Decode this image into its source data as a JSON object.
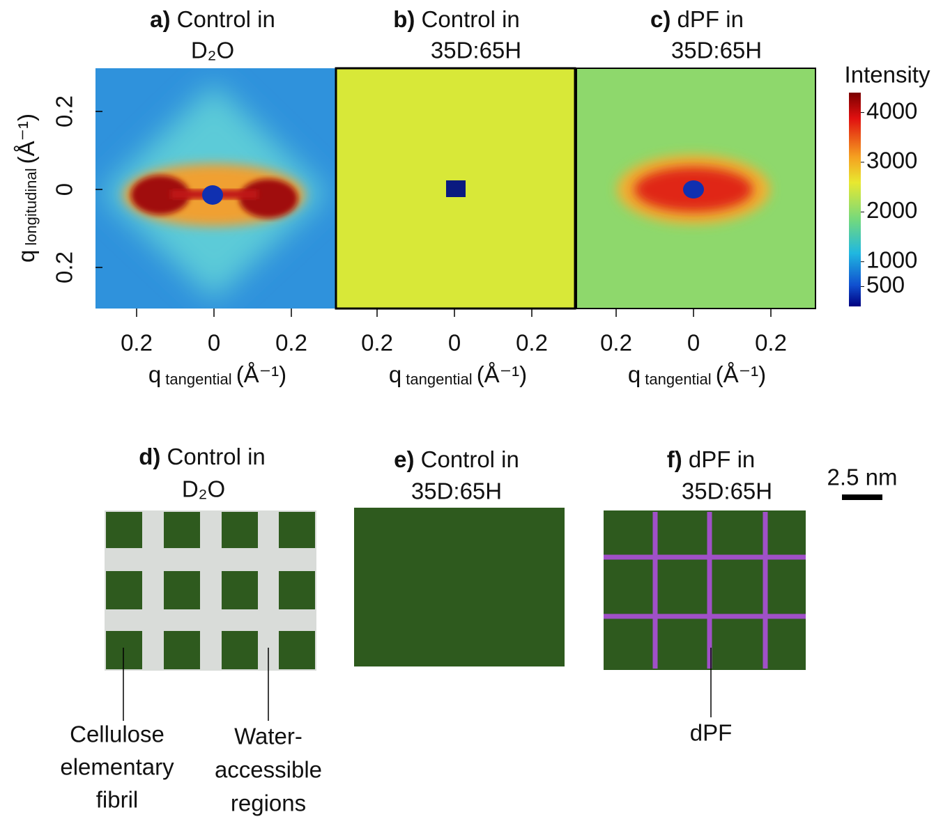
{
  "panels": [
    {
      "label": "a)",
      "title": [
        "Control in",
        "D₂O"
      ]
    },
    {
      "label": "b)",
      "title": [
        "Control in",
        "35D:65H"
      ]
    },
    {
      "label": "c)",
      "title": [
        "dPF in",
        "35D:65H"
      ]
    },
    {
      "label": "d)",
      "title": [
        "Control in",
        "D₂O"
      ]
    },
    {
      "label": "e)",
      "title": [
        "Control in",
        "35D:65H"
      ]
    },
    {
      "label": "f)",
      "title": [
        "dPF in",
        "35D:65H"
      ]
    }
  ],
  "y_axis": {
    "title": {
      "symbol": "q",
      "sub": "longitudinal",
      "unit": "(Å⁻¹)"
    },
    "ticks": [
      {
        "value": 0.2,
        "label": "0.2"
      },
      0,
      {
        "value": -0.2,
        "label": "0.2"
      }
    ]
  },
  "x_axis": {
    "title": {
      "symbol": "q",
      "sub": "tangential",
      "unit": "(Å⁻¹)"
    },
    "ticks": [
      {
        "value": -0.2,
        "label": "0.2"
      },
      0,
      {
        "value": 0.2,
        "label": "0.2"
      }
    ]
  },
  "colorbar": {
    "title": "Intensity",
    "lim": [
      100,
      4400
    ],
    "ticks": [
      4000,
      3000,
      2000,
      1000,
      500
    ]
  },
  "scale_bar": "2.5 nm",
  "annotations": {
    "fibril": [
      "Cellulose",
      "elementary",
      "fibril"
    ],
    "water": [
      "Water-",
      "accessible",
      "regions"
    ],
    "dpf": "dPF"
  }
}
